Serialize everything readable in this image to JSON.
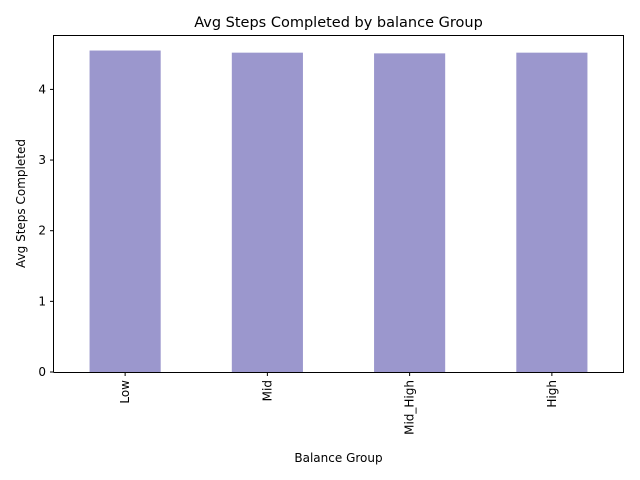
{
  "chart_data": {
    "type": "bar",
    "title": "Avg Steps Completed by balance Group",
    "xlabel": "Balance Group",
    "ylabel": "Avg Steps Completed",
    "categories": [
      "Low",
      "Mid",
      "Mid_High",
      "High"
    ],
    "values": [
      4.55,
      4.52,
      4.51,
      4.52
    ],
    "ylim": [
      0,
      4.77
    ],
    "yticks": [
      0,
      1,
      2,
      3,
      4
    ],
    "grid": false,
    "bar_color": "#9b97cd",
    "x_tick_rotation": "vertical"
  }
}
